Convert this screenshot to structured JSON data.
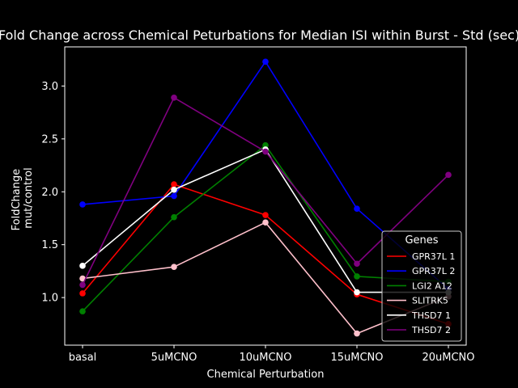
{
  "chart_data": {
    "type": "line",
    "title": "Fold Change across Chemical Peturbations for Median ISI within Burst - Std (sec)",
    "xlabel": "Chemical Perturbation",
    "ylabel_line1": "FoldChange",
    "ylabel_line2": "mut/control",
    "categories": [
      "basal",
      "5uMCNO",
      "10uMCNO",
      "15uMCNO",
      "20uMCNO"
    ],
    "ylim": [
      0.55,
      3.37
    ],
    "yticks": [
      "1.0",
      "1.5",
      "2.0",
      "2.5",
      "3.0"
    ],
    "legend_title": "Genes",
    "legend_position": "lower-right",
    "grid": false,
    "series": [
      {
        "name": "GPR37L 1",
        "color": "#ff0000",
        "values": [
          1.04,
          2.07,
          1.78,
          1.03,
          0.75
        ]
      },
      {
        "name": "GPR37L 2",
        "color": "#0000ff",
        "values": [
          1.88,
          1.96,
          3.23,
          1.84,
          1.08
        ]
      },
      {
        "name": "LGI2 A12",
        "color": "#008000",
        "values": [
          0.87,
          1.76,
          2.44,
          1.2,
          1.15
        ]
      },
      {
        "name": "SLITRK5",
        "color": "#ffc0cb",
        "values": [
          1.18,
          1.29,
          1.71,
          0.66,
          1.01
        ]
      },
      {
        "name": "THSD7 1",
        "color": "#ffffff",
        "values": [
          1.3,
          2.02,
          2.4,
          1.05,
          1.05
        ]
      },
      {
        "name": "THSD7 2",
        "color": "#800080",
        "values": [
          1.12,
          2.89,
          2.38,
          1.32,
          2.16
        ]
      }
    ]
  }
}
